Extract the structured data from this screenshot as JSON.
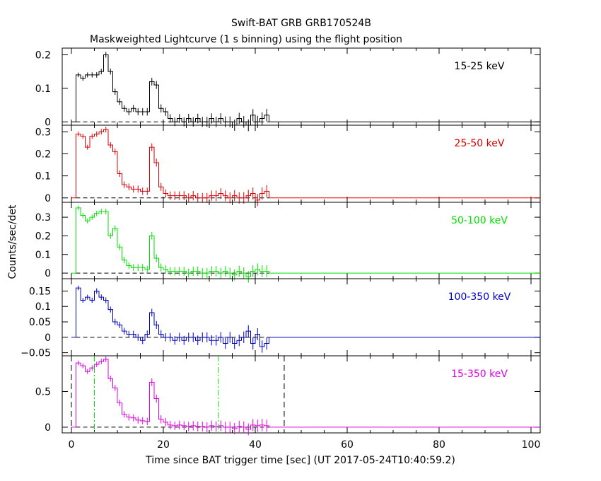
{
  "chart_data": {
    "type": "line",
    "title": "Swift-BAT GRB GRB170524B",
    "subtitle": "Maskweighted Lightcurve (1 s binning) using the flight position",
    "xlabel": "Time since BAT trigger time [sec] (UT 2017-05-24T10:40:59.2)",
    "ylabel": "Counts/sec/det",
    "xlim": [
      -2,
      102
    ],
    "x_ticks": [
      0,
      20,
      40,
      60,
      80,
      100
    ],
    "x_tick_labels": [
      "0",
      "20",
      "40",
      "60",
      "80",
      "100"
    ],
    "grid": false,
    "x_bins": [
      1.5,
      2.5,
      3.5,
      4.5,
      5.5,
      6.5,
      7.5,
      8.5,
      9.5,
      10.5,
      11.5,
      12.5,
      13.5,
      14.5,
      15.5,
      16.5,
      17.5,
      18.5,
      19.5,
      20.5,
      21.5,
      22.5,
      23.5,
      24.5,
      25.5,
      26.5,
      27.5,
      28.5,
      29.5,
      30.5,
      31.5,
      32.5,
      33.5,
      34.5,
      35.5,
      36.5,
      37.5,
      38.5,
      39.5,
      40.5,
      41.5,
      42.5
    ],
    "panels": [
      {
        "label": "15-25 keV",
        "color": "#000000",
        "ylim": [
          -0.01,
          0.22
        ],
        "y_ticks": [
          0,
          0.1,
          0.2
        ],
        "y_tick_labels": [
          "0",
          "0.1",
          "0.2"
        ],
        "values": [
          0.14,
          0.13,
          0.14,
          0.14,
          0.14,
          0.15,
          0.2,
          0.15,
          0.09,
          0.06,
          0.04,
          0.03,
          0.04,
          0.03,
          0.03,
          0.03,
          0.12,
          0.11,
          0.04,
          0.03,
          0.01,
          0.0,
          0.01,
          0.0,
          0.01,
          0.0,
          0.01,
          0.0,
          0.0,
          0.01,
          0.0,
          0.01,
          0.0,
          0.0,
          -0.01,
          0.01,
          0.0,
          -0.01,
          0.02,
          0.0,
          0.01,
          0.02
        ]
      },
      {
        "label": "25-50 keV",
        "color": "#e00000",
        "ylim": [
          -0.02,
          0.33
        ],
        "y_ticks": [
          0,
          0.1,
          0.2,
          0.3
        ],
        "y_tick_labels": [
          "0",
          "0.1",
          "0.2",
          "0.3"
        ],
        "values": [
          0.29,
          0.28,
          0.23,
          0.28,
          0.29,
          0.3,
          0.31,
          0.24,
          0.21,
          0.11,
          0.06,
          0.05,
          0.04,
          0.04,
          0.03,
          0.03,
          0.23,
          0.16,
          0.05,
          0.02,
          0.01,
          0.01,
          0.01,
          0.01,
          0.0,
          0.01,
          0.0,
          0.0,
          0.0,
          0.01,
          0.01,
          0.02,
          0.01,
          0.0,
          0.01,
          0.0,
          0.0,
          0.01,
          0.02,
          -0.01,
          0.02,
          0.03
        ]
      },
      {
        "label": "50-100 keV",
        "color": "#00e000",
        "ylim": [
          -0.03,
          0.38
        ],
        "y_ticks": [
          0,
          0.1,
          0.2,
          0.3
        ],
        "y_tick_labels": [
          "0",
          "0.1",
          "0.2",
          "0.3"
        ],
        "values": [
          0.35,
          0.31,
          0.28,
          0.3,
          0.32,
          0.33,
          0.33,
          0.2,
          0.24,
          0.14,
          0.07,
          0.04,
          0.03,
          0.03,
          0.03,
          0.02,
          0.2,
          0.08,
          0.03,
          0.02,
          0.01,
          0.01,
          0.01,
          0.01,
          0.0,
          0.01,
          0.01,
          0.0,
          0.0,
          0.01,
          0.01,
          0.0,
          0.01,
          0.0,
          -0.01,
          0.01,
          0.0,
          -0.02,
          0.01,
          0.02,
          0.01,
          0.01
        ]
      },
      {
        "label": "100-350 keV",
        "color": "#0000c0",
        "ylim": [
          -0.06,
          0.19
        ],
        "y_ticks": [
          -0.05,
          0,
          0.05,
          0.1,
          0.15
        ],
        "y_tick_labels": [
          "−0.05",
          "0",
          "0.05",
          "0.1",
          "0.15"
        ],
        "values": [
          0.16,
          0.12,
          0.13,
          0.12,
          0.15,
          0.13,
          0.12,
          0.09,
          0.05,
          0.04,
          0.02,
          0.01,
          0.01,
          0.0,
          -0.01,
          0.01,
          0.08,
          0.04,
          0.01,
          0.0,
          0.0,
          -0.01,
          0.0,
          -0.01,
          0.0,
          0.0,
          -0.01,
          0.0,
          0.0,
          -0.01,
          -0.01,
          0.0,
          -0.02,
          0.0,
          -0.02,
          -0.01,
          0.0,
          0.02,
          -0.02,
          0.01,
          -0.03,
          -0.02
        ]
      },
      {
        "label": "15-350 keV",
        "color": "#e000e0",
        "ylim": [
          -0.08,
          1.0
        ],
        "y_ticks": [
          0,
          0.5
        ],
        "y_tick_labels": [
          "0",
          "0.5"
        ],
        "values": [
          0.9,
          0.86,
          0.78,
          0.83,
          0.88,
          0.92,
          0.95,
          0.68,
          0.55,
          0.34,
          0.18,
          0.14,
          0.13,
          0.1,
          0.09,
          0.08,
          0.63,
          0.4,
          0.11,
          0.07,
          0.03,
          0.02,
          0.03,
          0.02,
          0.01,
          0.02,
          0.01,
          0.01,
          0.0,
          0.02,
          0.01,
          0.02,
          0.0,
          0.0,
          -0.02,
          0.01,
          0.0,
          -0.03,
          0.03,
          0.02,
          0.03,
          0.02
        ],
        "vlines": [
          {
            "x": 0.0,
            "style": "dashed",
            "color": "#000000"
          },
          {
            "x": 46.3,
            "style": "dashed",
            "color": "#000000"
          },
          {
            "x": 5.0,
            "style": "dashdot",
            "color": "#00e000"
          },
          {
            "x": 32.0,
            "style": "dashdot",
            "color": "#00e000"
          }
        ]
      }
    ]
  }
}
